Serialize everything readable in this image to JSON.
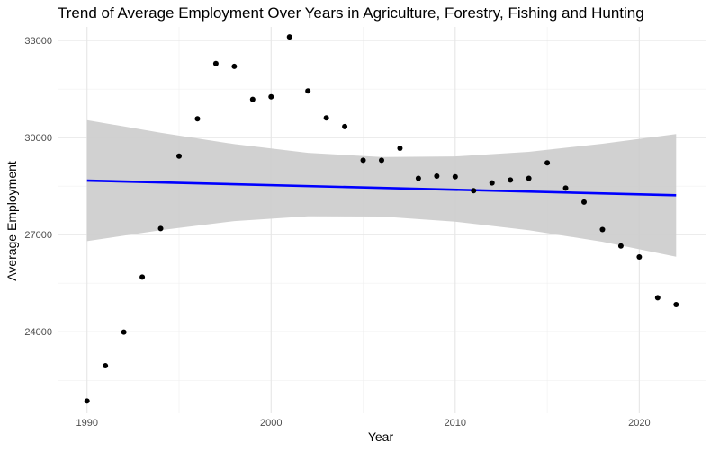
{
  "chart_data": {
    "type": "scatter",
    "title": "Trend of Average Employment Over Years in Agriculture, Forestry, Fishing and Hunting",
    "xlabel": "Year",
    "ylabel": "Average Employment",
    "x_ticks": [
      1990,
      2000,
      2010,
      2020
    ],
    "x_tick_labels": [
      "1990",
      "2000",
      "2010",
      "2020"
    ],
    "y_ticks": [
      24000,
      27000,
      30000,
      33000
    ],
    "y_tick_labels": [
      "24000",
      "27000",
      "30000",
      "33000"
    ],
    "xlim": [
      1988.4,
      2023.6
    ],
    "ylim": [
      21480,
      33420
    ],
    "grid": true,
    "series": [
      {
        "name": "observed",
        "kind": "points",
        "color": "#000000",
        "x": [
          1990,
          1991,
          1992,
          1993,
          1994,
          1995,
          1996,
          1997,
          1998,
          1999,
          2000,
          2001,
          2002,
          2003,
          2004,
          2005,
          2006,
          2007,
          2008,
          2009,
          2010,
          2011,
          2012,
          2013,
          2014,
          2015,
          2016,
          2017,
          2018,
          2019,
          2020,
          2021,
          2022
        ],
        "y": [
          21860,
          22950,
          23990,
          25690,
          27190,
          29430,
          30580,
          32290,
          32200,
          31180,
          31260,
          33110,
          31440,
          30610,
          30340,
          29300,
          29300,
          29670,
          28740,
          28810,
          28790,
          28360,
          28600,
          28690,
          28740,
          29220,
          28440,
          28010,
          27160,
          26650,
          26310,
          25050,
          24840
        ]
      },
      {
        "name": "linear fit",
        "kind": "line",
        "color": "#0000ff",
        "x": [
          1990,
          2022
        ],
        "y": [
          28670,
          28220
        ]
      },
      {
        "name": "95% confidence band",
        "kind": "band",
        "color": "#cccccc",
        "x": [
          1990,
          1994,
          1998,
          2002,
          2006,
          2010,
          2014,
          2018,
          2022
        ],
        "lower": [
          26800,
          27140,
          27420,
          27570,
          27560,
          27400,
          27140,
          26780,
          26320
        ],
        "upper": [
          30540,
          30150,
          29800,
          29530,
          29400,
          29420,
          29560,
          29810,
          30110
        ]
      }
    ]
  }
}
